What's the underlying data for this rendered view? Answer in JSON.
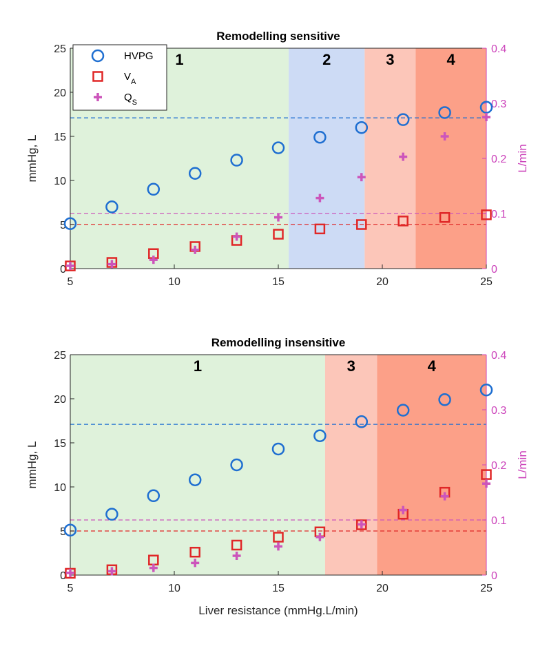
{
  "xlabel": "Liver resistance (mmHg.L/min)",
  "legend": [
    {
      "symbol": "circle",
      "label": "HVPG",
      "sub": "",
      "color": "#1f6fd1"
    },
    {
      "symbol": "square",
      "label": "V",
      "sub": "A",
      "color": "#e02727"
    },
    {
      "symbol": "plus",
      "label": "Q",
      "sub": "S",
      "color": "#cc55bb"
    }
  ],
  "chart_data": [
    {
      "type": "scatter",
      "title": "Remodelling sensitive",
      "ylabel": "mmHg, L",
      "ylabel_right": "L/min",
      "xlim": [
        5,
        25
      ],
      "ylim": [
        0,
        25
      ],
      "ylim_right": [
        0,
        0.4
      ],
      "xticks": [
        5,
        10,
        15,
        20,
        25
      ],
      "yticks": [
        0,
        5,
        10,
        15,
        20,
        25
      ],
      "yticks_right": [
        "0",
        "0.1",
        "0.2",
        "0.3",
        "0.4"
      ],
      "regions": [
        {
          "label": "1",
          "x0": 5,
          "x1": 15.5,
          "color": "#dff2db"
        },
        {
          "label": "2",
          "x0": 15.5,
          "x1": 19.15,
          "color": "#cddbf5"
        },
        {
          "label": "3",
          "x0": 19.15,
          "x1": 21.6,
          "color": "#fcc6b9"
        },
        {
          "label": "4",
          "x0": 21.6,
          "x1": 25,
          "color": "#fca088"
        }
      ],
      "hlines": [
        {
          "axis": "left",
          "y": 17.1,
          "color": "#1f6fd1"
        },
        {
          "axis": "left",
          "y": 5.0,
          "color": "#e02727"
        },
        {
          "axis": "right",
          "y": 0.1,
          "color": "#cc55bb"
        }
      ],
      "x": [
        5,
        7,
        9,
        11,
        13,
        15,
        17,
        19,
        21,
        23,
        25
      ],
      "series": [
        {
          "name": "HVPG",
          "axis": "left",
          "marker": "circle",
          "color": "#1f6fd1",
          "values": [
            5.1,
            7.0,
            9.0,
            10.8,
            12.3,
            13.7,
            14.9,
            16.0,
            16.9,
            17.7,
            18.3
          ]
        },
        {
          "name": "V_A",
          "axis": "left",
          "marker": "square",
          "color": "#e02727",
          "values": [
            0.3,
            0.7,
            1.7,
            2.5,
            3.2,
            3.9,
            4.5,
            5.0,
            5.4,
            5.8,
            6.1
          ]
        },
        {
          "name": "Q_S",
          "axis": "right",
          "marker": "plus",
          "color": "#cc55bb",
          "values": [
            0.005,
            0.008,
            0.016,
            0.034,
            0.058,
            0.093,
            0.128,
            0.166,
            0.203,
            0.24,
            0.275
          ]
        }
      ]
    },
    {
      "type": "scatter",
      "title": "Remodelling insensitive",
      "ylabel": "mmHg, L",
      "ylabel_right": "L/min",
      "xlim": [
        5,
        25
      ],
      "ylim": [
        0,
        25
      ],
      "ylim_right": [
        0,
        0.4
      ],
      "xticks": [
        5,
        10,
        15,
        20,
        25
      ],
      "yticks": [
        0,
        5,
        10,
        15,
        20,
        25
      ],
      "yticks_right": [
        "0",
        "0.1",
        "0.2",
        "0.3",
        "0.4"
      ],
      "regions": [
        {
          "label": "1",
          "x0": 5,
          "x1": 17.25,
          "color": "#dff2db"
        },
        {
          "label": "3",
          "x0": 17.25,
          "x1": 19.75,
          "color": "#fcc6b9"
        },
        {
          "label": "4",
          "x0": 19.75,
          "x1": 25,
          "color": "#fca088"
        }
      ],
      "hlines": [
        {
          "axis": "left",
          "y": 17.1,
          "color": "#1f6fd1"
        },
        {
          "axis": "left",
          "y": 5.0,
          "color": "#e02727"
        },
        {
          "axis": "right",
          "y": 0.1,
          "color": "#cc55bb"
        }
      ],
      "x": [
        5,
        7,
        9,
        11,
        13,
        15,
        17,
        19,
        21,
        23,
        25
      ],
      "series": [
        {
          "name": "HVPG",
          "axis": "left",
          "marker": "circle",
          "color": "#1f6fd1",
          "values": [
            5.1,
            6.9,
            9.0,
            10.8,
            12.5,
            14.3,
            15.8,
            17.4,
            18.7,
            19.9,
            21.0
          ]
        },
        {
          "name": "V_A",
          "axis": "left",
          "marker": "square",
          "color": "#e02727",
          "values": [
            0.2,
            0.6,
            1.7,
            2.6,
            3.4,
            4.3,
            4.9,
            5.7,
            6.9,
            9.4,
            11.4
          ]
        },
        {
          "name": "Q_S",
          "axis": "right",
          "marker": "plus",
          "color": "#cc55bb",
          "values": [
            0.004,
            0.007,
            0.013,
            0.022,
            0.035,
            0.052,
            0.069,
            0.092,
            0.118,
            0.143,
            0.166
          ]
        }
      ]
    }
  ]
}
